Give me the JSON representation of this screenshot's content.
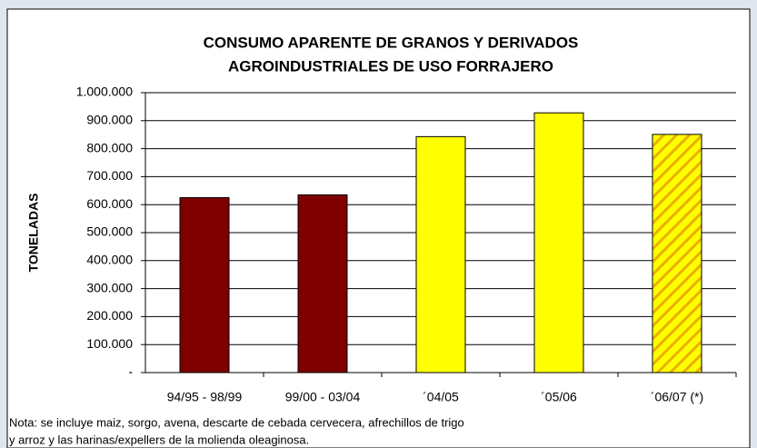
{
  "chart_data": {
    "type": "bar",
    "title_lines": [
      "CONSUMO APARENTE DE GRANOS Y DERIVADOS",
      "AGROINDUSTRIALES DE USO FORRAJERO"
    ],
    "y_label": "TONELADAS",
    "categories": [
      "94/95 - 98/99",
      "99/00 - 03/04",
      "´04/05",
      "´05/06",
      "´06/07 (*)"
    ],
    "values": [
      625000,
      635000,
      843000,
      928000,
      851000
    ],
    "colors": [
      "#800000",
      "#800000",
      "#ffff00",
      "#ffff00",
      "#ffff00"
    ],
    "hatched": [
      false,
      false,
      false,
      false,
      true
    ],
    "ylim": [
      0,
      1000000
    ],
    "yticks": [
      {
        "value": 0,
        "label": "-"
      },
      {
        "value": 100000,
        "label": "100.000"
      },
      {
        "value": 200000,
        "label": "200.000"
      },
      {
        "value": 300000,
        "label": "300.000"
      },
      {
        "value": 400000,
        "label": "400.000"
      },
      {
        "value": 500000,
        "label": "500.000"
      },
      {
        "value": 600000,
        "label": "600.000"
      },
      {
        "value": 700000,
        "label": "700.000"
      },
      {
        "value": 800000,
        "label": "800.000"
      },
      {
        "value": 900000,
        "label": "900.000"
      },
      {
        "value": 1000000,
        "label": "1.000.000"
      }
    ],
    "grid": true,
    "note_lines": [
      "Nota: se incluye maiz, sorgo, avena, descarte de cebada cervecera, afrechillos de trigo",
      "y arroz y las harinas/expellers de la molienda oleaginosa."
    ]
  }
}
